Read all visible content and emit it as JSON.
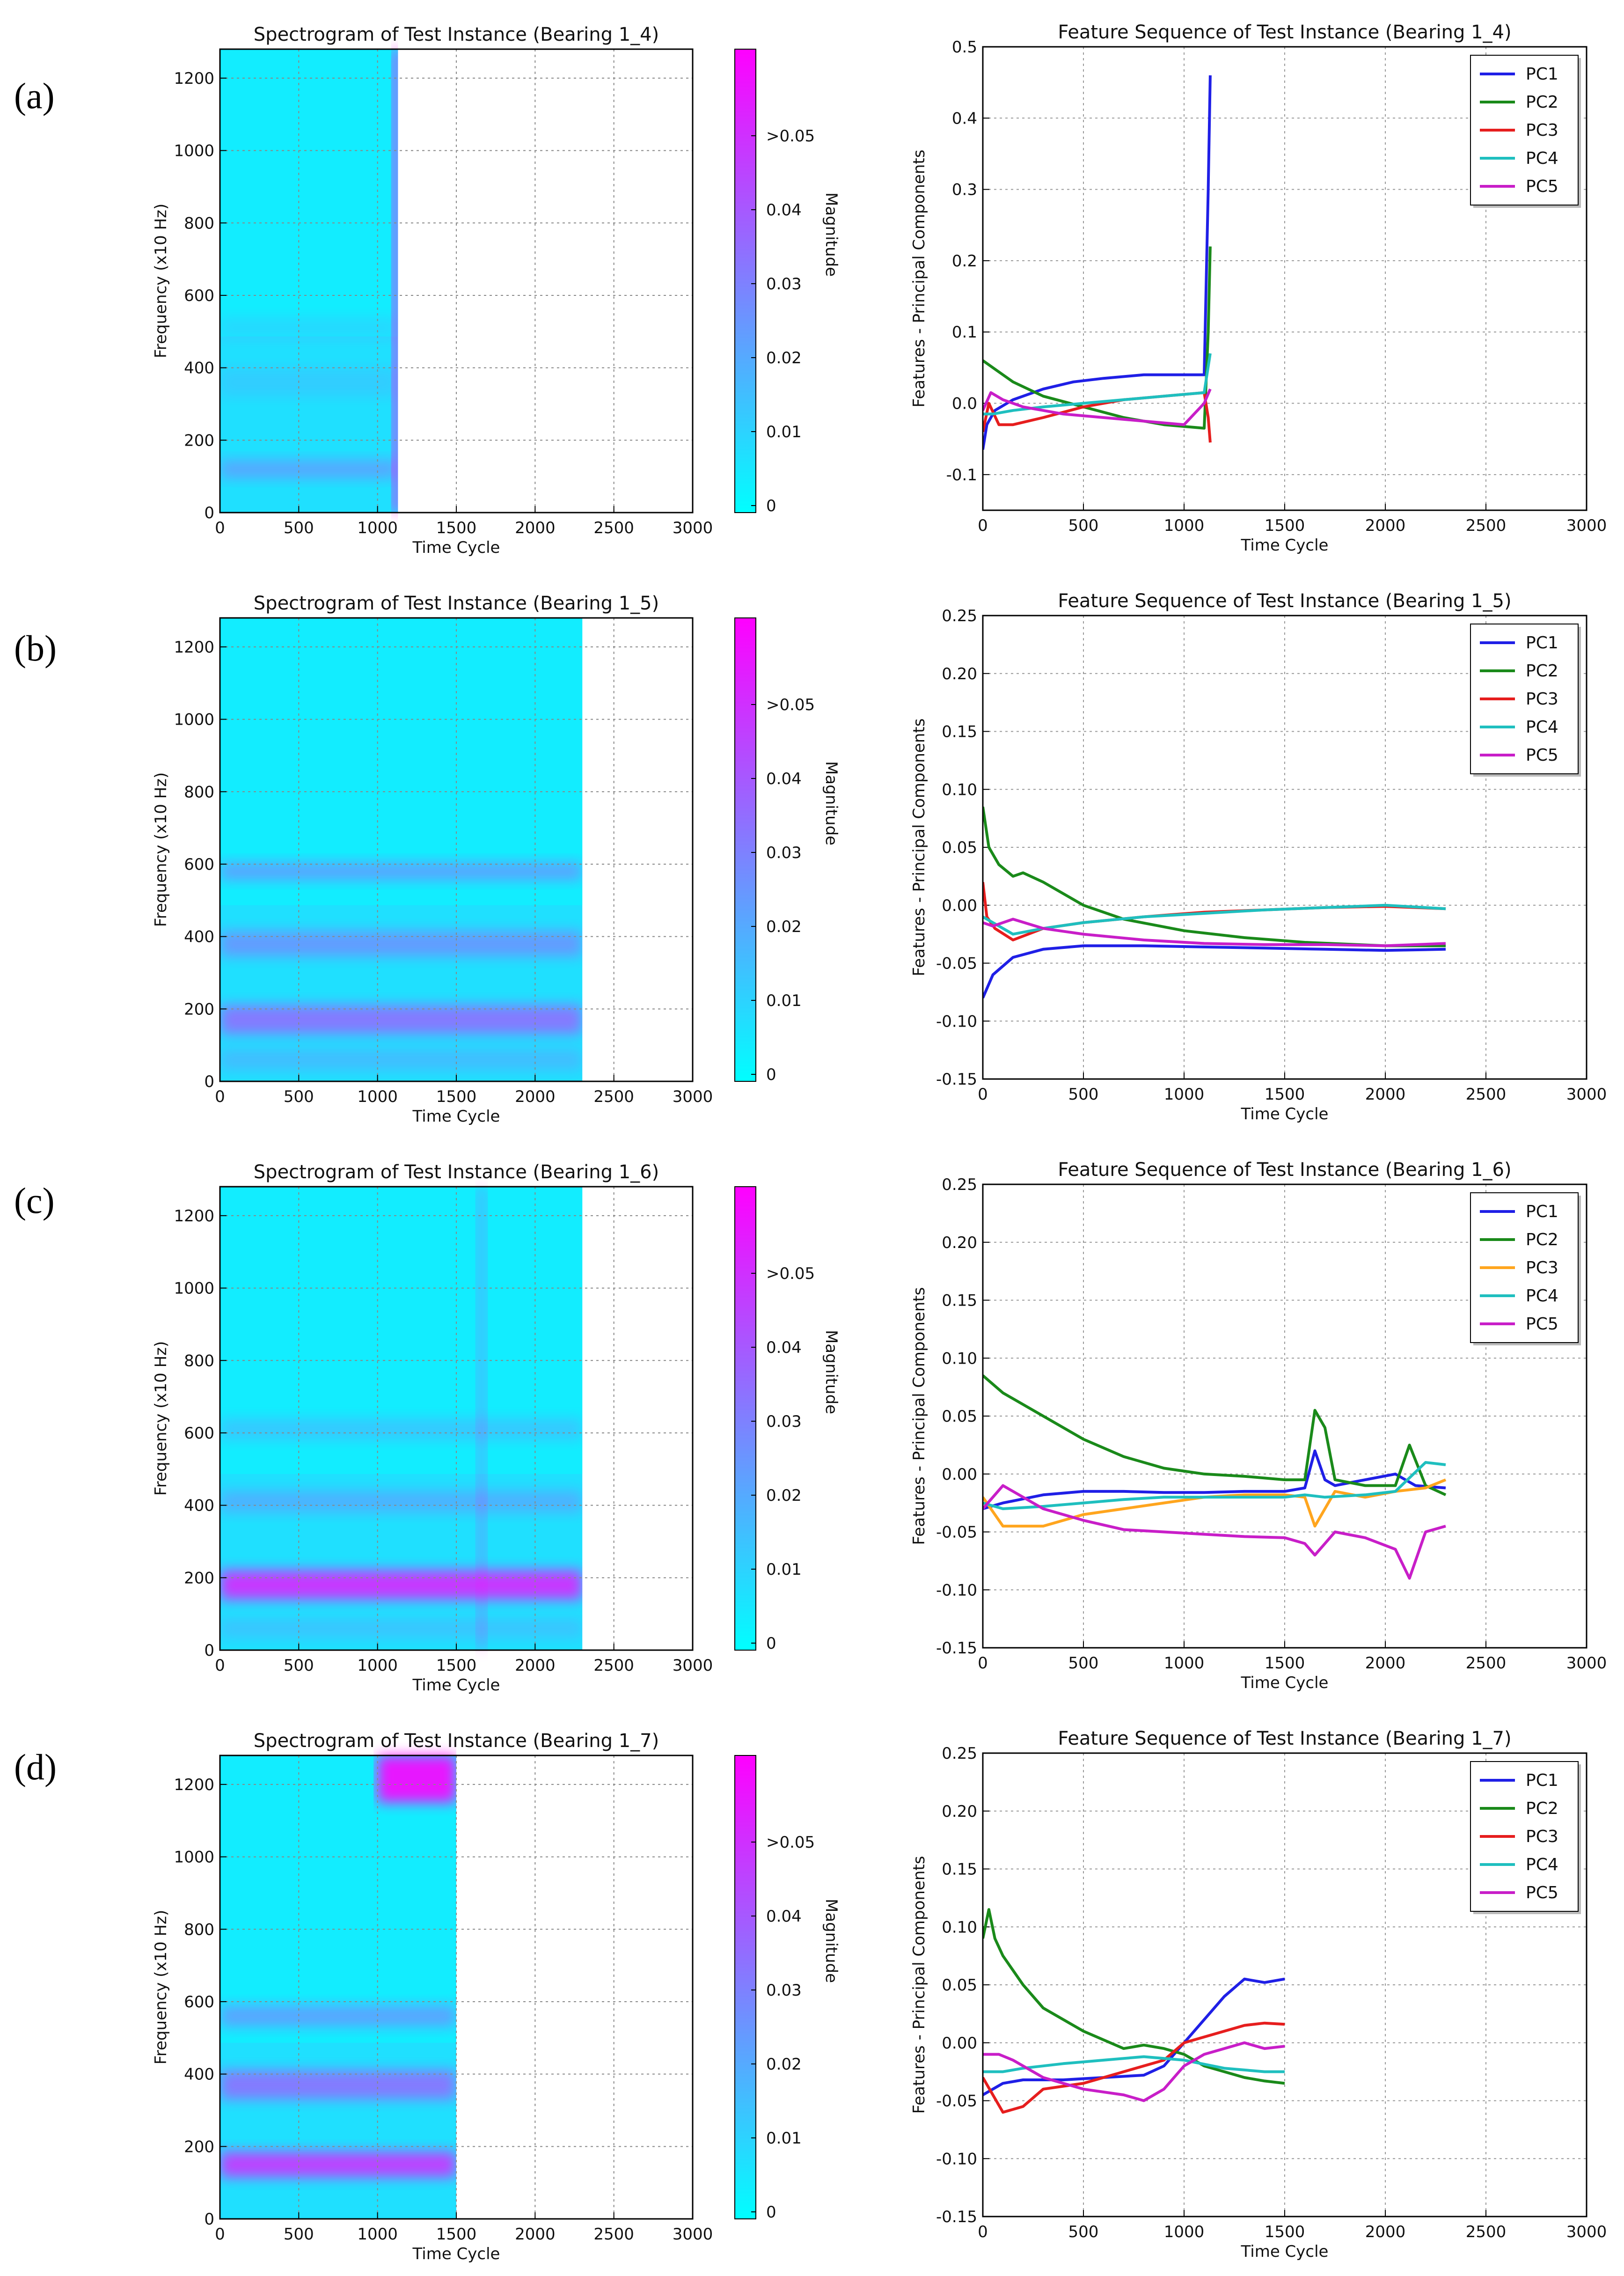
{
  "row_labels": [
    "(a)",
    "(b)",
    "(c)",
    "(d)"
  ],
  "colors": {
    "PC1": "#1f1fe6",
    "PC2": "#1a8a1a",
    "PC3": "#e61e1e",
    "PC3_c": "#ffa51e",
    "PC4": "#1fbfbf",
    "PC5": "#c81ec8",
    "cmap_low": "#00ffff",
    "cmap_high": "#ff00ff"
  },
  "chart_data": [
    {
      "type": "heatmap",
      "title": "Spectrogram of Test Instance (Bearing 1_4)",
      "xlabel": "Time Cycle",
      "ylabel": "Frequency (x10 Hz)",
      "xlim": [
        0,
        3000
      ],
      "ylim": [
        0,
        1280
      ],
      "xticks": [
        "0",
        "500",
        "1000",
        "1500",
        "2000",
        "2500",
        "3000"
      ],
      "yticks": [
        "0",
        "200",
        "400",
        "600",
        "800",
        "1000",
        "1200"
      ],
      "data_extent_x": 1130,
      "colorbar": {
        "label": "Magnitude",
        "ticks": [
          "0",
          "0.01",
          "0.02",
          "0.03",
          "0.04",
          ">0.05"
        ]
      },
      "bands": [
        {
          "y": 120,
          "halfwidth": 25,
          "intensity": 0.25
        },
        {
          "y": 360,
          "halfwidth": 40,
          "intensity": 0.08
        },
        {
          "y": 510,
          "halfwidth": 30,
          "intensity": 0.08
        }
      ],
      "vstreaks": [
        {
          "x": 1125,
          "intensity": 0.55
        }
      ]
    },
    {
      "type": "line",
      "title": "Feature Sequence of Test Instance (Bearing 1_4)",
      "xlabel": "Time Cycle",
      "ylabel": "Features - Principal Components",
      "xlim": [
        0,
        3000
      ],
      "ylim": [
        -0.15,
        0.5
      ],
      "xticks": [
        "0",
        "500",
        "1000",
        "1500",
        "2000",
        "2500",
        "3000"
      ],
      "yticks": [
        "-0.1",
        "0.0",
        "0.1",
        "0.2",
        "0.3",
        "0.4",
        "0.5"
      ],
      "series": [
        {
          "name": "PC1",
          "x": [
            0,
            20,
            60,
            150,
            300,
            450,
            600,
            800,
            1000,
            1100,
            1120,
            1130
          ],
          "values": [
            -0.065,
            -0.03,
            -0.01,
            0.005,
            0.02,
            0.03,
            0.035,
            0.04,
            0.04,
            0.04,
            0.3,
            0.46
          ]
        },
        {
          "name": "PC2",
          "x": [
            0,
            50,
            150,
            300,
            500,
            700,
            900,
            1100,
            1120,
            1130
          ],
          "values": [
            0.06,
            0.05,
            0.03,
            0.01,
            -0.005,
            -0.02,
            -0.03,
            -0.035,
            0.1,
            0.22
          ]
        },
        {
          "name": "PC3",
          "x": [
            0,
            30,
            80,
            150,
            300,
            500,
            700,
            900,
            1100,
            1120,
            1130
          ],
          "values": [
            -0.04,
            0.0,
            -0.03,
            -0.03,
            -0.02,
            -0.005,
            0.005,
            0.01,
            0.015,
            -0.02,
            -0.055
          ]
        },
        {
          "name": "PC4",
          "x": [
            0,
            50,
            150,
            300,
            500,
            700,
            900,
            1100,
            1130
          ],
          "values": [
            -0.015,
            -0.015,
            -0.01,
            -0.005,
            0.0,
            0.005,
            0.01,
            0.015,
            0.07
          ]
        },
        {
          "name": "PC5",
          "x": [
            0,
            40,
            100,
            200,
            400,
            600,
            800,
            1000,
            1100,
            1130
          ],
          "values": [
            -0.01,
            0.015,
            0.005,
            -0.005,
            -0.015,
            -0.02,
            -0.025,
            -0.03,
            0.0,
            0.02
          ]
        }
      ]
    },
    {
      "type": "heatmap",
      "title": "Spectrogram of Test Instance (Bearing 1_5)",
      "xlabel": "Time Cycle",
      "ylabel": "Frequency (x10 Hz)",
      "xlim": [
        0,
        3000
      ],
      "ylim": [
        0,
        1280
      ],
      "xticks": [
        "0",
        "500",
        "1000",
        "1500",
        "2000",
        "2500",
        "3000"
      ],
      "yticks": [
        "0",
        "200",
        "400",
        "600",
        "800",
        "1000",
        "1200"
      ],
      "data_extent_x": 2300,
      "colorbar": {
        "label": "Magnitude",
        "ticks": [
          "0",
          "0.01",
          "0.02",
          "0.03",
          "0.04",
          ">0.05"
        ]
      },
      "bands": [
        {
          "y": 170,
          "halfwidth": 40,
          "intensity": 0.45
        },
        {
          "y": 380,
          "halfwidth": 35,
          "intensity": 0.3
        },
        {
          "y": 580,
          "halfwidth": 25,
          "intensity": 0.3
        },
        {
          "y": 60,
          "halfwidth": 30,
          "intensity": 0.15
        }
      ],
      "vstreaks": []
    },
    {
      "type": "line",
      "title": "Feature Sequence of Test Instance (Bearing 1_5)",
      "xlabel": "Time Cycle",
      "ylabel": "Features - Principal Components",
      "xlim": [
        0,
        3000
      ],
      "ylim": [
        -0.15,
        0.25
      ],
      "xticks": [
        "0",
        "500",
        "1000",
        "1500",
        "2000",
        "2500",
        "3000"
      ],
      "yticks": [
        "-0.15",
        "-0.10",
        "-0.05",
        "0.00",
        "0.05",
        "0.10",
        "0.15",
        "0.20",
        "0.25"
      ],
      "series": [
        {
          "name": "PC1",
          "x": [
            0,
            50,
            150,
            300,
            500,
            800,
            1100,
            1400,
            1700,
            2000,
            2300
          ],
          "values": [
            -0.08,
            -0.06,
            -0.045,
            -0.038,
            -0.035,
            -0.035,
            -0.036,
            -0.037,
            -0.038,
            -0.039,
            -0.038
          ]
        },
        {
          "name": "PC2",
          "x": [
            0,
            30,
            80,
            150,
            200,
            300,
            500,
            700,
            1000,
            1300,
            1600,
            2000,
            2300
          ],
          "values": [
            0.085,
            0.05,
            0.035,
            0.025,
            0.028,
            0.02,
            0.0,
            -0.012,
            -0.022,
            -0.028,
            -0.032,
            -0.035,
            -0.035
          ]
        },
        {
          "name": "PC3",
          "x": [
            0,
            20,
            60,
            150,
            300,
            500,
            800,
            1100,
            1400,
            1700,
            2000,
            2300
          ],
          "values": [
            0.02,
            -0.01,
            -0.02,
            -0.03,
            -0.02,
            -0.015,
            -0.01,
            -0.006,
            -0.004,
            -0.002,
            -0.001,
            -0.003
          ]
        },
        {
          "name": "PC4",
          "x": [
            0,
            50,
            150,
            300,
            500,
            800,
            1100,
            1400,
            1700,
            2000,
            2300
          ],
          "values": [
            -0.01,
            -0.015,
            -0.025,
            -0.02,
            -0.015,
            -0.01,
            -0.007,
            -0.004,
            -0.002,
            0.0,
            -0.003
          ]
        },
        {
          "name": "PC5",
          "x": [
            0,
            50,
            150,
            300,
            500,
            800,
            1100,
            1400,
            1700,
            2000,
            2300
          ],
          "values": [
            -0.015,
            -0.018,
            -0.012,
            -0.02,
            -0.025,
            -0.03,
            -0.033,
            -0.034,
            -0.034,
            -0.035,
            -0.033
          ]
        }
      ]
    },
    {
      "type": "heatmap",
      "title": "Spectrogram of Test Instance (Bearing 1_6)",
      "xlabel": "Time Cycle",
      "ylabel": "Frequency (x10 Hz)",
      "xlim": [
        0,
        3000
      ],
      "ylim": [
        0,
        1280
      ],
      "xticks": [
        "0",
        "500",
        "1000",
        "1500",
        "2000",
        "2500",
        "3000"
      ],
      "yticks": [
        "0",
        "200",
        "400",
        "600",
        "800",
        "1000",
        "1200"
      ],
      "data_extent_x": 2300,
      "colorbar": {
        "label": "Magnitude",
        "ticks": [
          "0",
          "0.01",
          "0.02",
          "0.03",
          "0.04",
          ">0.05"
        ]
      },
      "bands": [
        {
          "y": 180,
          "halfwidth": 40,
          "intensity": 0.75
        },
        {
          "y": 410,
          "halfwidth": 30,
          "intensity": 0.2
        },
        {
          "y": 610,
          "halfwidth": 30,
          "intensity": 0.15
        },
        {
          "y": 60,
          "halfwidth": 25,
          "intensity": 0.12
        }
      ],
      "vstreaks": [
        {
          "x": 1660,
          "intensity": 0.2
        }
      ]
    },
    {
      "type": "line",
      "title": "Feature Sequence of Test Instance (Bearing 1_6)",
      "xlabel": "Time Cycle",
      "ylabel": "Features - Principal Components",
      "xlim": [
        0,
        3000
      ],
      "ylim": [
        -0.15,
        0.25
      ],
      "xticks": [
        "0",
        "500",
        "1000",
        "1500",
        "2000",
        "2500",
        "3000"
      ],
      "yticks": [
        "-0.15",
        "-0.10",
        "-0.05",
        "0.00",
        "0.05",
        "0.10",
        "0.15",
        "0.20",
        "0.25"
      ],
      "series": [
        {
          "name": "PC1",
          "x": [
            0,
            100,
            300,
            500,
            700,
            900,
            1100,
            1300,
            1500,
            1600,
            1650,
            1700,
            1750,
            1900,
            2050,
            2150,
            2300
          ],
          "values": [
            -0.03,
            -0.025,
            -0.018,
            -0.015,
            -0.015,
            -0.016,
            -0.016,
            -0.015,
            -0.015,
            -0.012,
            0.02,
            -0.005,
            -0.01,
            -0.005,
            0.0,
            -0.01,
            -0.012
          ]
        },
        {
          "name": "PC2",
          "x": [
            0,
            100,
            300,
            500,
            700,
            900,
            1100,
            1300,
            1500,
            1600,
            1650,
            1700,
            1750,
            1900,
            2050,
            2120,
            2200,
            2300
          ],
          "values": [
            0.085,
            0.07,
            0.05,
            0.03,
            0.015,
            0.005,
            0.0,
            -0.002,
            -0.005,
            -0.005,
            0.055,
            0.04,
            -0.005,
            -0.01,
            -0.01,
            0.025,
            -0.01,
            -0.018
          ]
        },
        {
          "name": "PC3",
          "x": [
            0,
            100,
            300,
            500,
            700,
            900,
            1100,
            1300,
            1500,
            1600,
            1650,
            1700,
            1750,
            1900,
            2050,
            2200,
            2300
          ],
          "values": [
            -0.02,
            -0.045,
            -0.045,
            -0.035,
            -0.03,
            -0.025,
            -0.02,
            -0.018,
            -0.018,
            -0.02,
            -0.045,
            -0.03,
            -0.015,
            -0.02,
            -0.015,
            -0.012,
            -0.005
          ]
        },
        {
          "name": "PC4",
          "x": [
            0,
            100,
            300,
            500,
            700,
            900,
            1100,
            1300,
            1500,
            1600,
            1700,
            1900,
            2050,
            2200,
            2300
          ],
          "values": [
            -0.025,
            -0.03,
            -0.028,
            -0.025,
            -0.022,
            -0.02,
            -0.02,
            -0.02,
            -0.02,
            -0.018,
            -0.02,
            -0.018,
            -0.015,
            0.01,
            0.008
          ]
        },
        {
          "name": "PC5",
          "x": [
            0,
            100,
            300,
            500,
            700,
            900,
            1100,
            1300,
            1500,
            1600,
            1650,
            1700,
            1750,
            1900,
            2050,
            2120,
            2200,
            2300
          ],
          "values": [
            -0.03,
            -0.01,
            -0.03,
            -0.04,
            -0.048,
            -0.05,
            -0.052,
            -0.054,
            -0.055,
            -0.06,
            -0.07,
            -0.06,
            -0.05,
            -0.055,
            -0.065,
            -0.09,
            -0.05,
            -0.045
          ]
        }
      ]
    },
    {
      "type": "heatmap",
      "title": "Spectrogram of Test Instance (Bearing 1_7)",
      "xlabel": "Time Cycle",
      "ylabel": "Frequency (x10 Hz)",
      "xlim": [
        0,
        3000
      ],
      "ylim": [
        0,
        1280
      ],
      "xticks": [
        "0",
        "500",
        "1000",
        "1500",
        "2000",
        "2500",
        "3000"
      ],
      "yticks": [
        "0",
        "200",
        "400",
        "600",
        "800",
        "1000",
        "1200"
      ],
      "data_extent_x": 1500,
      "colorbar": {
        "label": "Magnitude",
        "ticks": [
          "0",
          "0.01",
          "0.02",
          "0.03",
          "0.04",
          ">0.05"
        ]
      },
      "bands": [
        {
          "y": 150,
          "halfwidth": 35,
          "intensity": 0.7
        },
        {
          "y": 370,
          "halfwidth": 40,
          "intensity": 0.45
        },
        {
          "y": 560,
          "halfwidth": 30,
          "intensity": 0.3
        }
      ],
      "vstreaks": [],
      "patch": {
        "x0": 1000,
        "x1": 1500,
        "y0": 1150,
        "y1": 1280,
        "intensity": 0.9
      }
    },
    {
      "type": "line",
      "title": "Feature Sequence of Test Instance (Bearing 1_7)",
      "xlabel": "Time Cycle",
      "ylabel": "Features - Principal Components",
      "xlim": [
        0,
        3000
      ],
      "ylim": [
        -0.15,
        0.25
      ],
      "xticks": [
        "0",
        "500",
        "1000",
        "1500",
        "2000",
        "2500",
        "3000"
      ],
      "yticks": [
        "-0.15",
        "-0.10",
        "-0.05",
        "0.00",
        "0.05",
        "0.10",
        "0.15",
        "0.20",
        "0.25"
      ],
      "series": [
        {
          "name": "PC1",
          "x": [
            0,
            100,
            200,
            400,
            600,
            800,
            900,
            1000,
            1100,
            1200,
            1300,
            1400,
            1500
          ],
          "values": [
            -0.045,
            -0.035,
            -0.032,
            -0.032,
            -0.03,
            -0.028,
            -0.02,
            0.0,
            0.02,
            0.04,
            0.055,
            0.052,
            0.055
          ]
        },
        {
          "name": "PC2",
          "x": [
            0,
            30,
            60,
            100,
            200,
            300,
            500,
            700,
            800,
            900,
            1000,
            1100,
            1200,
            1300,
            1400,
            1500
          ],
          "values": [
            0.09,
            0.115,
            0.09,
            0.075,
            0.05,
            0.03,
            0.01,
            -0.005,
            -0.002,
            -0.005,
            -0.01,
            -0.02,
            -0.025,
            -0.03,
            -0.033,
            -0.035
          ]
        },
        {
          "name": "PC3",
          "x": [
            0,
            50,
            100,
            200,
            300,
            500,
            700,
            900,
            1000,
            1100,
            1200,
            1300,
            1400,
            1500
          ],
          "values": [
            -0.03,
            -0.045,
            -0.06,
            -0.055,
            -0.04,
            -0.035,
            -0.025,
            -0.015,
            0.0,
            0.005,
            0.01,
            0.015,
            0.017,
            0.016
          ]
        },
        {
          "name": "PC4",
          "x": [
            0,
            100,
            200,
            400,
            600,
            800,
            1000,
            1200,
            1400,
            1500
          ],
          "values": [
            -0.025,
            -0.025,
            -0.022,
            -0.018,
            -0.015,
            -0.012,
            -0.015,
            -0.022,
            -0.025,
            -0.025
          ]
        },
        {
          "name": "PC5",
          "x": [
            0,
            30,
            80,
            150,
            300,
            500,
            700,
            800,
            900,
            1000,
            1100,
            1200,
            1300,
            1400,
            1500
          ],
          "values": [
            -0.01,
            -0.01,
            -0.01,
            -0.015,
            -0.03,
            -0.04,
            -0.045,
            -0.05,
            -0.04,
            -0.02,
            -0.01,
            -0.005,
            0.0,
            -0.005,
            -0.003
          ]
        }
      ]
    }
  ]
}
